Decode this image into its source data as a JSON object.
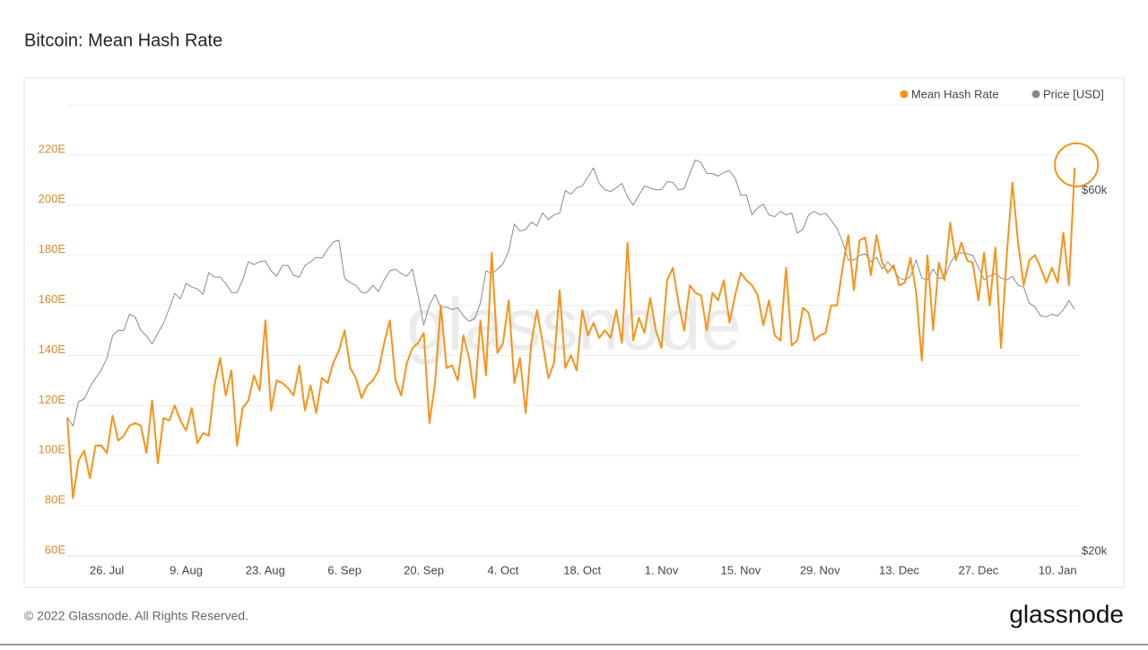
{
  "chart_data": {
    "type": "line",
    "title": "Bitcoin: Mean Hash Rate",
    "categories": [
      null,
      null,
      null,
      null,
      null,
      null,
      null,
      "26. Jul",
      null,
      null,
      null,
      null,
      null,
      null,
      null,
      null,
      null,
      null,
      null,
      null,
      null,
      "9. Aug",
      null,
      null,
      null,
      null,
      null,
      null,
      null,
      null,
      null,
      null,
      null,
      null,
      null,
      "23. Aug",
      null,
      null,
      null,
      null,
      null,
      null,
      null,
      null,
      null,
      null,
      null,
      null,
      null,
      "6. Sep",
      null,
      null,
      null,
      null,
      null,
      null,
      null,
      null,
      null,
      null,
      null,
      null,
      null,
      "20. Sep",
      null,
      null,
      null,
      null,
      null,
      null,
      null,
      null,
      null,
      null,
      null,
      null,
      null,
      "4. Oct",
      null,
      null,
      null,
      null,
      null,
      null,
      null,
      null,
      null,
      null,
      null,
      null,
      null,
      "18. Oct",
      null,
      null,
      null,
      null,
      null,
      null,
      null,
      null,
      null,
      null,
      null,
      null,
      null,
      "1. Nov",
      null,
      null,
      null,
      null,
      null,
      null,
      null,
      null,
      null,
      null,
      null,
      null,
      null,
      "15. Nov",
      null,
      null,
      null,
      null,
      null,
      null,
      null,
      null,
      null,
      null,
      null,
      null,
      null,
      "29. Nov",
      null,
      null,
      null,
      null,
      null,
      null,
      null,
      null,
      null,
      null,
      null,
      null,
      null,
      "13. Dec",
      null,
      null,
      null,
      null,
      null,
      null,
      null,
      null,
      null,
      null,
      null,
      null,
      null,
      "27. Dec",
      null,
      null,
      null,
      null,
      null,
      null,
      null,
      null,
      null,
      null,
      null,
      null,
      null,
      "10. Jan",
      null,
      null,
      null
    ],
    "series": [
      {
        "name": "Mean Hash Rate",
        "color": "#f7931a",
        "values": [
          115,
          83,
          98,
          102,
          91,
          104,
          104,
          101,
          116,
          106,
          108,
          112,
          113,
          112,
          101,
          122,
          97,
          115,
          114,
          120,
          114,
          110,
          119,
          105,
          109,
          108,
          128,
          139,
          124,
          134,
          104,
          119,
          122,
          132,
          126,
          154,
          118,
          130,
          129,
          127,
          124,
          136,
          118,
          128,
          117,
          131,
          129,
          137,
          142,
          150,
          135,
          131,
          123,
          128,
          130,
          134,
          145,
          154,
          130,
          124,
          137,
          143,
          145,
          149,
          113,
          129,
          160,
          135,
          136,
          130,
          148,
          139,
          123,
          154,
          132,
          181,
          141,
          145,
          162,
          129,
          139,
          117,
          145,
          158,
          145,
          131,
          137,
          166,
          135,
          140,
          134,
          158,
          148,
          153,
          147,
          150,
          147,
          158,
          145,
          185,
          146,
          155,
          149,
          163,
          150,
          143,
          170,
          175,
          161,
          150,
          168,
          165,
          164,
          150,
          165,
          162,
          170,
          153,
          164,
          173,
          170,
          168,
          164,
          152,
          162,
          148,
          146,
          175,
          144,
          146,
          159,
          157,
          146,
          148,
          149,
          160,
          160,
          175,
          188,
          166,
          186,
          187,
          172,
          188,
          177,
          173,
          176,
          168,
          169,
          179,
          165,
          138,
          180,
          150,
          177,
          170,
          193,
          178,
          185,
          178,
          177,
          162,
          181,
          160,
          183,
          143,
          180,
          209,
          185,
          168,
          178,
          180,
          175,
          169,
          175,
          169,
          189,
          168,
          215
        ]
      },
      {
        "name": "Price [USD]",
        "color": "#8a8a8a",
        "axis": "y2",
        "values": [
          35400,
          34400,
          37100,
          37400,
          38700,
          39700,
          40600,
          41900,
          44400,
          45000,
          45000,
          46800,
          46500,
          45000,
          44400,
          43500,
          44700,
          45800,
          47400,
          49100,
          48500,
          50200,
          49800,
          49600,
          49000,
          51400,
          50900,
          50900,
          50200,
          49200,
          49200,
          50600,
          52600,
          52300,
          52600,
          52700,
          51600,
          51000,
          52200,
          52200,
          51100,
          50900,
          52200,
          52600,
          53100,
          53000,
          54000,
          54800,
          55000,
          50800,
          50300,
          50000,
          49200,
          49200,
          50000,
          49300,
          50600,
          51600,
          51800,
          51300,
          51000,
          51800,
          48800,
          45600,
          47800,
          49000,
          47500,
          47600,
          47300,
          47500,
          46600,
          46000,
          46300,
          48000,
          51600,
          51300,
          51800,
          52400,
          53800,
          56800,
          56000,
          56200,
          57000,
          56600,
          58000,
          57300,
          57800,
          58000,
          60500,
          60100,
          60800,
          61000,
          62000,
          63000,
          61300,
          60600,
          60400,
          60800,
          61300,
          59800,
          58900,
          60000,
          61000,
          60800,
          60600,
          60600,
          61500,
          61400,
          60600,
          60700,
          62400,
          63900,
          63600,
          62400,
          62400,
          62100,
          62500,
          62700,
          61900,
          60000,
          60000,
          57800,
          58600,
          59000,
          57800,
          57600,
          58200,
          57800,
          58000,
          55800,
          56200,
          57800,
          58200,
          57800,
          58000,
          57200,
          56300,
          54800,
          52800,
          52800,
          53300,
          53500,
          52600,
          53100,
          51800,
          52600,
          51800,
          50800,
          50600,
          51000,
          52800,
          50800,
          50600,
          51800,
          50800,
          50800,
          52400,
          53500,
          53600,
          53500,
          53300,
          52000,
          50600,
          51000,
          51300,
          50800,
          50600,
          51000,
          50000,
          49800,
          48000,
          47600,
          46600,
          46500,
          46800,
          46600,
          47300,
          48300,
          47300
        ]
      }
    ],
    "ylim": [
      60,
      240
    ],
    "yticks": [
      {
        "value": 60,
        "label": "60E"
      },
      {
        "value": 80,
        "label": "80E"
      },
      {
        "value": 100,
        "label": "100E"
      },
      {
        "value": 120,
        "label": "120E"
      },
      {
        "value": 140,
        "label": "140E"
      },
      {
        "value": 160,
        "label": "160E"
      },
      {
        "value": 180,
        "label": "180E"
      },
      {
        "value": 200,
        "label": "200E"
      },
      {
        "value": 220,
        "label": "220E"
      }
    ],
    "y2lim": [
      20000,
      70000
    ],
    "y2ticks": [
      {
        "value": 60000,
        "label": "$60k"
      },
      {
        "value": 20000,
        "label": "$20k"
      }
    ],
    "grid": true,
    "legend": "top-right"
  },
  "watermark": "glassnode",
  "footer": {
    "copyright": "© 2022 Glassnode. All Rights Reserved.",
    "logo": "glassnode"
  }
}
